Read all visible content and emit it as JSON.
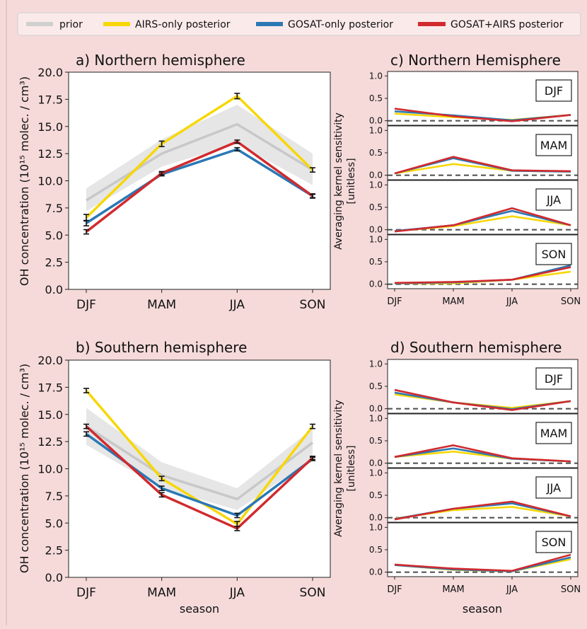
{
  "legend": {
    "entries": [
      {
        "label": "prior",
        "color": "#d0d0d0"
      },
      {
        "label": "AIRS-only posterior",
        "color": "#f7d708"
      },
      {
        "label": "GOSAT-only posterior",
        "color": "#2a78b5"
      },
      {
        "label": "GOSAT+AIRS posterior",
        "color": "#d12a2e"
      }
    ]
  },
  "chart_data": [
    {
      "id": "a",
      "type": "line",
      "title": "a) Northern hemisphere",
      "ylabel": "OH concentration (10¹⁵ molec. / cm³)",
      "xlabel": "",
      "categories": [
        "DJF",
        "MAM",
        "JJA",
        "SON"
      ],
      "ylim": [
        0,
        20
      ],
      "yticks": [
        "0.0",
        "2.5",
        "5.0",
        "7.5",
        "10.0",
        "12.5",
        "15.0",
        "17.5",
        "20.0"
      ],
      "prior": {
        "values": [
          8.2,
          12.5,
          15.2,
          11.0
        ],
        "lower": [
          7.2,
          11.3,
          13.4,
          9.6
        ],
        "upper": [
          9.3,
          13.8,
          17.0,
          12.5
        ]
      },
      "series": [
        {
          "name": "AIRS-only posterior",
          "color": "#f7d708",
          "values": [
            6.6,
            13.4,
            17.8,
            11.0
          ],
          "err": [
            0.3,
            0.25,
            0.25,
            0.2
          ]
        },
        {
          "name": "GOSAT-only posterior",
          "color": "#2a78b5",
          "values": [
            6.1,
            10.6,
            12.9,
            8.6
          ],
          "err": [
            0.25,
            0.15,
            0.15,
            0.2
          ]
        },
        {
          "name": "GOSAT+AIRS posterior",
          "color": "#d12a2e",
          "values": [
            5.3,
            10.7,
            13.6,
            8.6
          ],
          "err": [
            0.2,
            0.15,
            0.15,
            0.15
          ]
        }
      ]
    },
    {
      "id": "b",
      "type": "line",
      "title": "b) Southern hemisphere",
      "ylabel": "OH concentration (10¹⁵ molec. / cm³)",
      "xlabel": "season",
      "categories": [
        "DJF",
        "MAM",
        "JJA",
        "SON"
      ],
      "ylim": [
        0,
        20
      ],
      "yticks": [
        "0.0",
        "2.5",
        "5.0",
        "7.5",
        "10.0",
        "12.5",
        "15.0",
        "17.5",
        "20.0"
      ],
      "prior": {
        "values": [
          13.9,
          9.4,
          7.2,
          12.4
        ],
        "lower": [
          12.2,
          8.2,
          6.2,
          10.9
        ],
        "upper": [
          15.6,
          10.6,
          8.2,
          13.7
        ]
      },
      "series": [
        {
          "name": "AIRS-only posterior",
          "color": "#f7d708",
          "values": [
            17.2,
            9.1,
            4.9,
            13.9
          ],
          "err": [
            0.2,
            0.2,
            0.25,
            0.2
          ]
        },
        {
          "name": "GOSAT-only posterior",
          "color": "#2a78b5",
          "values": [
            13.2,
            8.2,
            5.7,
            10.9
          ],
          "err": [
            0.2,
            0.2,
            0.2,
            0.15
          ]
        },
        {
          "name": "GOSAT+AIRS posterior",
          "color": "#d12a2e",
          "values": [
            13.9,
            7.6,
            4.5,
            11.0
          ],
          "err": [
            0.2,
            0.2,
            0.2,
            0.15
          ]
        }
      ]
    },
    {
      "id": "c",
      "type": "line",
      "title": "c) Northern Hemisphere",
      "ylabel": "Averaging kernel sensitivity",
      "ylabel2": "[unitless]",
      "xlabel": "",
      "categories": [
        "DJF",
        "MAM",
        "JJA",
        "SON"
      ],
      "ylim": [
        -0.1,
        1.1
      ],
      "yticks": [
        "0.0",
        "0.5",
        "1.0"
      ],
      "rows": [
        {
          "label": "DJF",
          "series": [
            {
              "name": "AIRS-only posterior",
              "color": "#f7d708",
              "values": [
                0.16,
                0.08,
                0.02,
                0.13
              ]
            },
            {
              "name": "GOSAT-only posterior",
              "color": "#2a78b5",
              "values": [
                0.21,
                0.12,
                0.01,
                0.13
              ]
            },
            {
              "name": "GOSAT+AIRS posterior",
              "color": "#d12a2e",
              "values": [
                0.27,
                0.1,
                -0.01,
                0.13
              ]
            }
          ]
        },
        {
          "label": "MAM",
          "series": [
            {
              "name": "AIRS-only posterior",
              "color": "#f7d708",
              "values": [
                0.04,
                0.25,
                0.1,
                0.08
              ]
            },
            {
              "name": "GOSAT-only posterior",
              "color": "#2a78b5",
              "values": [
                0.04,
                0.38,
                0.1,
                0.08
              ]
            },
            {
              "name": "GOSAT+AIRS posterior",
              "color": "#d12a2e",
              "values": [
                0.04,
                0.41,
                0.11,
                0.09
              ]
            }
          ]
        },
        {
          "label": "JJA",
          "series": [
            {
              "name": "AIRS-only posterior",
              "color": "#f7d708",
              "values": [
                -0.03,
                0.08,
                0.3,
                0.1
              ]
            },
            {
              "name": "GOSAT-only posterior",
              "color": "#2a78b5",
              "values": [
                -0.03,
                0.1,
                0.42,
                0.1
              ]
            },
            {
              "name": "GOSAT+AIRS posterior",
              "color": "#d12a2e",
              "values": [
                -0.04,
                0.1,
                0.48,
                0.1
              ]
            }
          ]
        },
        {
          "label": "SON",
          "series": [
            {
              "name": "AIRS-only posterior",
              "color": "#f7d708",
              "values": [
                0.02,
                0.02,
                0.1,
                0.28
              ]
            },
            {
              "name": "GOSAT-only posterior",
              "color": "#2a78b5",
              "values": [
                0.02,
                0.04,
                0.1,
                0.42
              ]
            },
            {
              "name": "GOSAT+AIRS posterior",
              "color": "#d12a2e",
              "values": [
                0.03,
                0.05,
                0.1,
                0.38
              ]
            }
          ]
        }
      ]
    },
    {
      "id": "d",
      "type": "line",
      "title": "d) Southern hemisphere",
      "ylabel": "Averaging kernel sensitivity",
      "ylabel2": "[unitless]",
      "xlabel": "season",
      "categories": [
        "DJF",
        "MAM",
        "JJA",
        "SON"
      ],
      "ylim": [
        -0.1,
        1.1
      ],
      "yticks": [
        "0.0",
        "0.5",
        "1.0"
      ],
      "rows": [
        {
          "label": "DJF",
          "series": [
            {
              "name": "AIRS-only posterior",
              "color": "#f7d708",
              "values": [
                0.32,
                0.14,
                0.02,
                0.17
              ]
            },
            {
              "name": "GOSAT-only posterior",
              "color": "#2a78b5",
              "values": [
                0.36,
                0.14,
                -0.01,
                0.17
              ]
            },
            {
              "name": "GOSAT+AIRS posterior",
              "color": "#d12a2e",
              "values": [
                0.42,
                0.14,
                -0.03,
                0.17
              ]
            }
          ]
        },
        {
          "label": "MAM",
          "series": [
            {
              "name": "AIRS-only posterior",
              "color": "#f7d708",
              "values": [
                0.14,
                0.26,
                0.1,
                0.04
              ]
            },
            {
              "name": "GOSAT-only posterior",
              "color": "#2a78b5",
              "values": [
                0.14,
                0.33,
                0.1,
                0.04
              ]
            },
            {
              "name": "GOSAT+AIRS posterior",
              "color": "#d12a2e",
              "values": [
                0.14,
                0.4,
                0.11,
                0.04
              ]
            }
          ]
        },
        {
          "label": "JJA",
          "series": [
            {
              "name": "AIRS-only posterior",
              "color": "#f7d708",
              "values": [
                -0.02,
                0.17,
                0.24,
                0.03
              ]
            },
            {
              "name": "GOSAT-only posterior",
              "color": "#2a78b5",
              "values": [
                -0.03,
                0.2,
                0.32,
                0.03
              ]
            },
            {
              "name": "GOSAT+AIRS posterior",
              "color": "#d12a2e",
              "values": [
                -0.04,
                0.2,
                0.36,
                0.03
              ]
            }
          ]
        },
        {
          "label": "SON",
          "series": [
            {
              "name": "AIRS-only posterior",
              "color": "#f7d708",
              "values": [
                0.16,
                0.05,
                0.02,
                0.29
              ]
            },
            {
              "name": "GOSAT-only posterior",
              "color": "#2a78b5",
              "values": [
                0.16,
                0.06,
                0.02,
                0.33
              ]
            },
            {
              "name": "GOSAT+AIRS posterior",
              "color": "#d12a2e",
              "values": [
                0.17,
                0.08,
                0.03,
                0.39
              ]
            }
          ]
        }
      ]
    }
  ]
}
